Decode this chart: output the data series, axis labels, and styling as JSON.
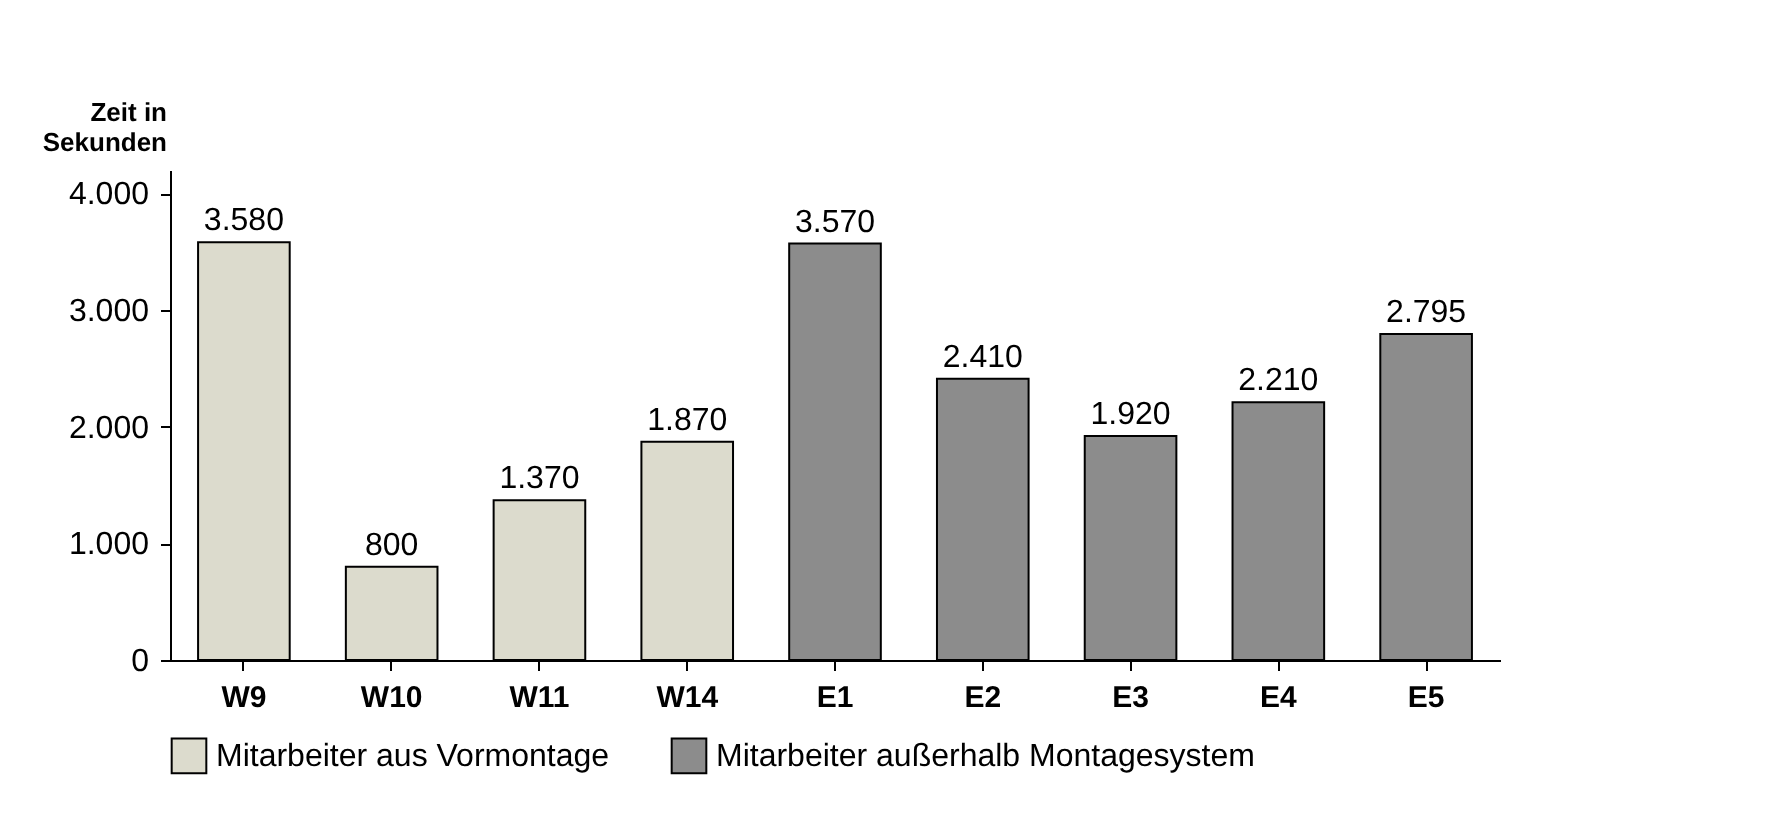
{
  "chart_data": {
    "type": "bar",
    "ylabel": "Zeit in Sekunden",
    "categories": [
      "W9",
      "W10",
      "W11",
      "W14",
      "E1",
      "E2",
      "E3",
      "E4",
      "E5"
    ],
    "series": [
      {
        "name": "Mitarbeiter aus Vormontage",
        "color": "#dcdbcd",
        "values": [
          3580,
          800,
          1370,
          1870,
          null,
          null,
          null,
          null,
          null
        ],
        "value_labels": [
          "3.580",
          "800",
          "1.370",
          "1.870",
          null,
          null,
          null,
          null,
          null
        ]
      },
      {
        "name": "Mitarbeiter außerhalb Montagesystem",
        "color": "#8c8c8c",
        "values": [
          null,
          null,
          null,
          null,
          3570,
          2410,
          1920,
          2210,
          2795
        ],
        "value_labels": [
          null,
          null,
          null,
          null,
          "3.570",
          "2.410",
          "1.920",
          "2.210",
          "2.795"
        ]
      }
    ],
    "ylim": [
      0,
      4200
    ],
    "yticks": [
      0,
      {
        "value": 1000,
        "label": "1.000"
      },
      {
        "value": 2000,
        "label": "2.000"
      },
      {
        "value": 3000,
        "label": "3.000"
      },
      {
        "value": 4000,
        "label": "4.000"
      }
    ],
    "legend": "bottom",
    "grid": false
  }
}
